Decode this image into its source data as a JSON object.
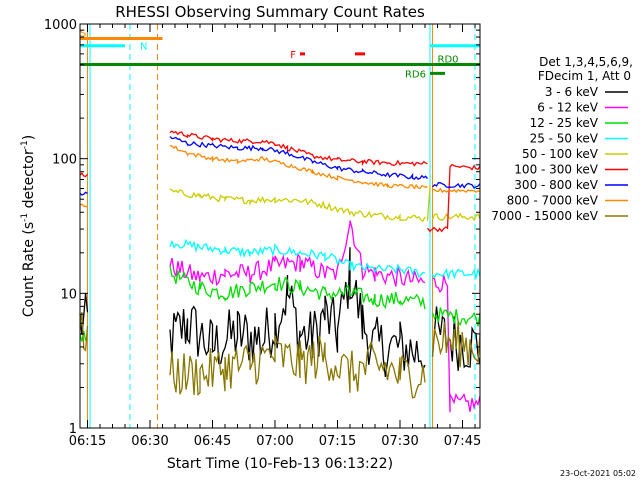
{
  "chart_data": {
    "type": "line",
    "title": "RHESSI Observing Summary Count Rates",
    "xlabel": "Start Time (10-Feb-13 06:13:22)",
    "ylabel_main": "Count Rate (s",
    "ylabel_sup1": "-1",
    "ylabel_mid": " detector",
    "ylabel_sup2": "-1",
    "ylabel_end": ")",
    "y_scale": "log",
    "ylim": [
      1,
      1000
    ],
    "xlim_minutes": [
      6.22,
      7.82
    ],
    "x_ticks": [
      "06:15",
      "06:30",
      "06:45",
      "07:00",
      "07:15",
      "07:30",
      "07:45"
    ],
    "y_ticks": [
      "1",
      "10",
      "100",
      "1000"
    ],
    "footer_date": "23-Oct-2021 05:02",
    "legend": {
      "position": "right",
      "header": [
        "Det 1,3,4,5,6,9,",
        "FDecim 1, Att 0"
      ],
      "entries": [
        {
          "label": "3 - 6 keV",
          "color": "#000000"
        },
        {
          "label": "6 - 12 keV",
          "color": "#ff00ff"
        },
        {
          "label": "12 - 25 keV",
          "color": "#00dd00"
        },
        {
          "label": "25 - 50 keV",
          "color": "#00ffff"
        },
        {
          "label": "50 - 100 keV",
          "color": "#cccc00"
        },
        {
          "label": "100 - 300 keV",
          "color": "#ff0000"
        },
        {
          "label": "300 - 800 keV",
          "color": "#0000ff"
        },
        {
          "label": "800 - 7000 keV",
          "color": "#ff8800"
        },
        {
          "label": "7000 - 15000 keV",
          "color": "#887700"
        }
      ]
    },
    "flag_bars": [
      {
        "label": "S",
        "color": "#ff8800",
        "x_start": 6.22,
        "x_end": 6.55,
        "y": 780
      },
      {
        "label": "N",
        "color": "#00ffff",
        "x_start": 6.22,
        "x_end": 6.4,
        "y": 690
      },
      {
        "label": "",
        "color": "#00ffff",
        "x_start": 7.62,
        "x_end": 7.82,
        "y": 690
      },
      {
        "label": "RD0",
        "color": "#008800",
        "x_start": 6.22,
        "x_end": 7.82,
        "y": 500
      },
      {
        "label": "F",
        "color": "#ff0000",
        "x_start": 7.1,
        "x_end": 7.12,
        "y": 600
      },
      {
        "label": "",
        "color": "#ff0000",
        "x_start": 7.32,
        "x_end": 7.36,
        "y": 600
      },
      {
        "label": "RD6",
        "color": "#008800",
        "x_start": 7.62,
        "x_end": 7.68,
        "y": 430
      }
    ],
    "vertical_lines": [
      {
        "x": 6.25,
        "color": "#ff8800",
        "style": "solid"
      },
      {
        "x": 6.26,
        "color": "#00ffff",
        "style": "solid"
      },
      {
        "x": 6.42,
        "color": "#00ffff",
        "style": "dashed"
      },
      {
        "x": 6.53,
        "color": "#ff8800",
        "style": "dashed"
      },
      {
        "x": 7.62,
        "color": "#00ffff",
        "style": "solid"
      },
      {
        "x": 7.63,
        "color": "#ff8800",
        "style": "solid"
      },
      {
        "x": 7.8,
        "color": "#00ffff",
        "style": "dashed"
      }
    ],
    "series": [
      {
        "name": "3 - 6 keV",
        "color": "#000000",
        "noise": 0.45,
        "segments": [
          {
            "x": [
              6.22,
              6.25
            ],
            "y": [
              6,
              6
            ]
          },
          {
            "x": [
              6.58,
              6.65,
              6.75,
              6.85,
              6.95,
              7.0,
              7.05,
              7.1,
              7.15,
              7.2,
              7.25,
              7.3,
              7.35,
              7.4,
              7.5,
              7.6
            ],
            "y": [
              4.5,
              6,
              4,
              5,
              4.5,
              6,
              10,
              5,
              4.5,
              7,
              5,
              14,
              6,
              4,
              4,
              3.5
            ]
          },
          {
            "x": [
              7.63,
              7.82
            ],
            "y": [
              5,
              4
            ]
          }
        ]
      },
      {
        "name": "6 - 12 keV",
        "color": "#ff00ff",
        "noise": 0.15,
        "segments": [
          {
            "x": [
              6.58,
              6.7,
              6.8,
              6.9,
              7.0,
              7.1,
              7.2,
              7.25,
              7.3,
              7.35,
              7.4,
              7.5,
              7.6
            ],
            "y": [
              16,
              13,
              14,
              14,
              16,
              17,
              14,
              14,
              35,
              15,
              14,
              13,
              12
            ]
          },
          {
            "x": [
              7.63,
              7.69,
              7.7,
              7.82
            ],
            "y": [
              12,
              12,
              1.5,
              1.5
            ]
          }
        ]
      },
      {
        "name": "12 - 25 keV",
        "color": "#00dd00",
        "noise": 0.12,
        "segments": [
          {
            "x": [
              6.22,
              6.25
            ],
            "y": [
              5,
              5
            ]
          },
          {
            "x": [
              6.58,
              6.7,
              6.8,
              6.9,
              7.0,
              7.1,
              7.2,
              7.3,
              7.4,
              7.5,
              7.6
            ],
            "y": [
              14,
              11,
              10,
              11,
              12,
              11,
              10,
              10,
              9,
              9,
              8.5
            ]
          },
          {
            "x": [
              7.63,
              7.82
            ],
            "y": [
              7,
              6.5
            ]
          }
        ]
      },
      {
        "name": "25 - 50 keV",
        "color": "#00ffff",
        "noise": 0.07,
        "segments": [
          {
            "x": [
              6.58,
              6.7,
              6.8,
              6.9,
              7.0,
              7.1,
              7.2,
              7.3,
              7.4,
              7.5,
              7.6
            ],
            "y": [
              24,
              22,
              21,
              20,
              21,
              20,
              19,
              16,
              15,
              15,
              14
            ]
          },
          {
            "x": [
              7.63,
              7.82
            ],
            "y": [
              14,
              14
            ]
          }
        ]
      },
      {
        "name": "50 - 100 keV",
        "color": "#cccc00",
        "noise": 0.05,
        "segments": [
          {
            "x": [
              6.58,
              6.7,
              6.8,
              6.9,
              7.0,
              7.1,
              7.2,
              7.3,
              7.4,
              7.5,
              7.6
            ],
            "y": [
              57,
              53,
              50,
              49,
              50,
              49,
              45,
              40,
              38,
              37,
              36
            ]
          },
          {
            "x": [
              7.61,
              7.62
            ],
            "y": [
              36,
              65
            ]
          },
          {
            "x": [
              7.63,
              7.82
            ],
            "y": [
              37,
              37
            ]
          }
        ]
      },
      {
        "name": "100 - 300 keV",
        "color": "#ff0000",
        "noise": 0.035,
        "segments": [
          {
            "x": [
              6.22,
              6.25
            ],
            "y": [
              75,
              75
            ]
          },
          {
            "x": [
              6.58,
              6.65,
              6.75,
              6.85,
              6.95,
              7.0,
              7.05,
              7.15,
              7.25,
              7.35,
              7.45,
              7.55,
              7.61
            ],
            "y": [
              160,
              150,
              140,
              135,
              135,
              130,
              120,
              105,
              98,
              95,
              93,
              92,
              92
            ]
          },
          {
            "x": [
              7.61,
              7.62,
              7.69,
              7.7,
              7.82
            ],
            "y": [
              30,
              30,
              30,
              88,
              85
            ]
          }
        ]
      },
      {
        "name": "300 - 800 keV",
        "color": "#0000ff",
        "noise": 0.035,
        "segments": [
          {
            "x": [
              6.22,
              6.25
            ],
            "y": [
              55,
              55
            ]
          },
          {
            "x": [
              6.58,
              6.65,
              6.75,
              6.85,
              6.95,
              7.05,
              7.15,
              7.25,
              7.35,
              7.45,
              7.55,
              7.61
            ],
            "y": [
              145,
              130,
              125,
              120,
              120,
              110,
              95,
              85,
              80,
              76,
              73,
              72
            ]
          },
          {
            "x": [
              7.63,
              7.82
            ],
            "y": [
              64,
              63
            ]
          }
        ]
      },
      {
        "name": "800 - 7000 keV",
        "color": "#ff8800",
        "noise": 0.03,
        "segments": [
          {
            "x": [
              6.22,
              6.25
            ],
            "y": [
              45,
              45
            ]
          },
          {
            "x": [
              6.58,
              6.65,
              6.75,
              6.85,
              6.95,
              7.05,
              7.15,
              7.25,
              7.35,
              7.45,
              7.55,
              7.61
            ],
            "y": [
              125,
              110,
              100,
              95,
              100,
              90,
              80,
              72,
              67,
              63,
              62,
              60
            ]
          },
          {
            "x": [
              7.63,
              7.82
            ],
            "y": [
              58,
              58
            ]
          }
        ]
      },
      {
        "name": "7000 - 15000 keV",
        "color": "#887700",
        "noise": 0.35,
        "segments": [
          {
            "x": [
              6.22,
              6.25
            ],
            "y": [
              5,
              5
            ]
          },
          {
            "x": [
              6.58,
              6.7,
              6.8,
              6.9,
              7.0,
              7.1,
              7.2,
              7.3,
              7.4,
              7.5,
              7.6
            ],
            "y": [
              2.5,
              2.5,
              2.8,
              3,
              3.5,
              3,
              3.5,
              2.5,
              3,
              2.5,
              2.5
            ]
          },
          {
            "x": [
              7.63,
              7.82
            ],
            "y": [
              4.5,
              4
            ]
          }
        ]
      }
    ]
  }
}
